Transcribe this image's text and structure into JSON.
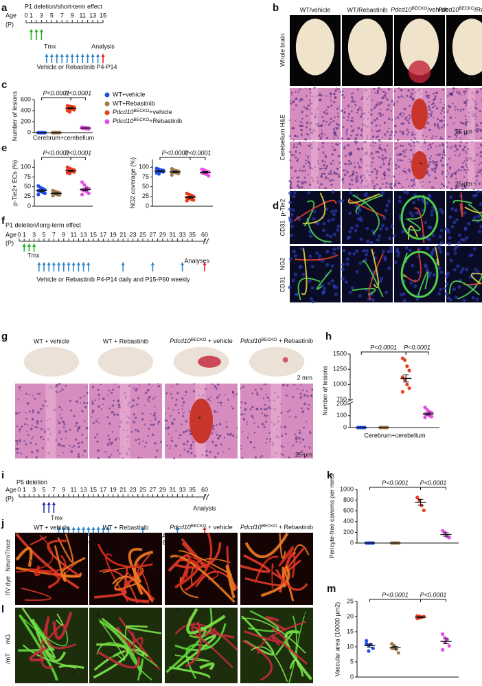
{
  "panel_labels": [
    "a",
    "b",
    "c",
    "d",
    "e",
    "f",
    "g",
    "h",
    "i",
    "j",
    "k",
    "l",
    "m"
  ],
  "timelines": [
    {
      "title": "P1 deletion/short-term effect",
      "age": "Age",
      "unit": "(P)",
      "ticks": [
        "0 1",
        "3",
        "5",
        "7",
        "9",
        "11",
        "13",
        "15"
      ],
      "tmx": "Tmx",
      "end": "Analysis",
      "treatment": "Vehicle or Rebastinib P4-P14"
    },
    {
      "title": "P1 deletion/long-term effect",
      "age": "Age",
      "unit": "(P)",
      "ticks": [
        "0 1",
        "3",
        "5",
        "7",
        "9",
        "11",
        "13",
        "15",
        "17",
        "19",
        "21",
        "23",
        "25",
        "27",
        "29",
        "31",
        "33",
        "35",
        "60"
      ],
      "tmx": "Tmx",
      "end": "Analyses",
      "treatment": "Vehicle or Rebastinib P4-P14 daily and P15-P60 weekly"
    },
    {
      "title": "P5 deletion",
      "age": "Age",
      "unit": "(P)",
      "ticks": [
        "0 1",
        "3",
        "5",
        "7",
        "9",
        "11",
        "13",
        "15",
        "17",
        "19",
        "21",
        "23",
        "25",
        "27",
        "29",
        "31",
        "33",
        "35",
        "60"
      ],
      "tmx": "Tmx",
      "end": "Analysis",
      "treatment": "Vehicle or Rebastinib P8-P18 daily and P19-P60 weekly"
    }
  ],
  "images": {
    "b": {
      "columns": [
        "WT/vehicle",
        "WT/Rebastinib",
        "Pdcd10BECKO/vehicle",
        "Pdcd10BECKO/Rebastinib"
      ],
      "rows": [
        "Whole brain",
        "Cerebellum H&E"
      ],
      "scale_bars": [
        "2 mm",
        "25 μm",
        "25 μm"
      ],
      "markers": [
        "*",
        "*"
      ]
    },
    "d": {
      "rows": [
        [
          "p-Tie2",
          "CD31"
        ],
        [
          "NG2",
          "CD31"
        ]
      ],
      "markers": [
        "*",
        "*"
      ]
    },
    "g": {
      "columns": [
        "WT + vehicle",
        "WT + Rebastinib",
        "Pdcd10BECKO + vehicle",
        "Pdcd10BECKO + Rebastinib"
      ],
      "scale_bars": [
        "2 mm",
        "25 μm"
      ],
      "markers": [
        "*",
        "*"
      ]
    },
    "j": {
      "columns": [
        "WT + vehicle",
        "WT + Rebastinib",
        "Pdcd10BECKO + vehicle",
        "Pdcd10BECKO + Rebastinib"
      ],
      "rows": [
        [
          "NeuroTrace",
          "/IV dye"
        ]
      ],
      "markers": [
        "A",
        "V",
        "A",
        "V",
        "V",
        "V",
        "A",
        "V"
      ]
    },
    "l": {
      "rows": [
        [
          "mG",
          "/mT"
        ]
      ],
      "markers": [
        "A",
        "V",
        "A",
        "V",
        "A",
        "A",
        "A"
      ]
    }
  },
  "chart_data": [
    {
      "type": "strip",
      "y_label": "Number of lesions",
      "x_label": "Cerebrum+cerebellum",
      "ylim": [
        0,
        600
      ],
      "yticks": [
        0,
        200,
        400,
        600
      ],
      "annotations": [
        "P<0.0001",
        "P<0.0001"
      ],
      "series": [
        {
          "name": "WT+vehicle",
          "color": "#1f4fe6",
          "values": [
            0,
            0,
            0,
            0,
            0,
            0,
            0,
            0,
            0,
            0
          ],
          "mean": 0,
          "sem": 0
        },
        {
          "name": "WT+Rebastinib",
          "color": "#a27a4e",
          "values": [
            0,
            0,
            0,
            0,
            0,
            0,
            0,
            0,
            0,
            0
          ],
          "mean": 0,
          "sem": 0
        },
        {
          "name": "Pdcd10BECKO+vehicle",
          "color": "#e83c1c",
          "values": [
            490,
            480,
            470,
            465,
            455,
            440,
            430,
            415,
            400,
            380
          ],
          "mean": 443,
          "sem": 11
        },
        {
          "name": "Pdcd10BECKO+Rebastinib",
          "color": "#e04ee4",
          "values": [
            100,
            95,
            90,
            85,
            82,
            78,
            72,
            68
          ],
          "mean": 84,
          "sem": 4
        }
      ]
    },
    {
      "type": "strip",
      "y_label": "p-Tie2+ ECs (%)",
      "ylim": [
        0,
        120
      ],
      "yticks": [
        0,
        25,
        50,
        75,
        100
      ],
      "annotations": [
        "P<0.0001",
        "P<0.0001"
      ],
      "series": [
        {
          "color": "#1f4fe6",
          "values": [
            52,
            48,
            45,
            42,
            40,
            38,
            36,
            33,
            30
          ],
          "mean": 40,
          "sem": 2.5
        },
        {
          "color": "#a27a4e",
          "values": [
            40,
            38,
            36,
            34,
            33,
            32,
            30,
            29,
            27
          ],
          "mean": 33,
          "sem": 1.5
        },
        {
          "color": "#e83c1c",
          "values": [
            100,
            97,
            95,
            93,
            92,
            90,
            89,
            88,
            86,
            84
          ],
          "mean": 91,
          "sem": 1.5
        },
        {
          "color": "#e04ee4",
          "values": [
            62,
            55,
            48,
            45,
            42,
            40,
            38,
            33,
            30
          ],
          "mean": 43,
          "sem": 3.5
        }
      ]
    },
    {
      "type": "strip",
      "y_label": "NG2 coverage (%)",
      "ylim": [
        0,
        120
      ],
      "yticks": [
        0,
        25,
        50,
        75,
        100
      ],
      "annotations": [
        "P<0.0001",
        "P<0.0001"
      ],
      "series": [
        {
          "color": "#1f4fe6",
          "values": [
            97,
            95,
            93,
            92,
            91,
            90,
            89,
            88,
            85,
            83
          ],
          "mean": 90,
          "sem": 1.4
        },
        {
          "color": "#a27a4e",
          "values": [
            96,
            93,
            91,
            90,
            88,
            87,
            86,
            84,
            80
          ],
          "mean": 88,
          "sem": 1.7
        },
        {
          "color": "#e83c1c",
          "values": [
            33,
            30,
            28,
            25,
            22,
            20,
            18,
            16,
            14
          ],
          "mean": 23,
          "sem": 2.2
        },
        {
          "color": "#e04ee4",
          "values": [
            95,
            93,
            90,
            88,
            86,
            84,
            82,
            78
          ],
          "mean": 87,
          "sem": 2
        }
      ]
    },
    {
      "type": "strip",
      "y_label": "Number of lesions",
      "x_label": "Cerebrum+cerebellum",
      "ylim": [
        0,
        1500
      ],
      "axis_break": [
        200,
        750
      ],
      "yticks": [
        0,
        100,
        200,
        750,
        1000,
        1250,
        1500
      ],
      "annotations": [
        "P<0.0001",
        "P<0.0001"
      ],
      "series": [
        {
          "color": "#1f4fe6",
          "values": [
            0,
            0,
            0,
            0,
            0,
            0,
            0,
            0,
            0
          ],
          "mean": 0,
          "sem": 0
        },
        {
          "color": "#a27a4e",
          "values": [
            0,
            0,
            0,
            0,
            0,
            0,
            0,
            0,
            0
          ],
          "mean": 0,
          "sem": 0
        },
        {
          "color": "#e83c1c",
          "values": [
            1430,
            1400,
            1300,
            1230,
            1120,
            1080,
            1000,
            940,
            880
          ],
          "mean": 1100,
          "sem": 60
        },
        {
          "color": "#e04ee4",
          "values": [
            170,
            150,
            135,
            125,
            115,
            110,
            100,
            92,
            85
          ],
          "mean": 115,
          "sem": 9
        }
      ]
    },
    {
      "type": "strip",
      "y_label": "Pericyte-free caverns per mm3",
      "ylim": [
        0,
        1000
      ],
      "yticks": [
        0,
        200,
        400,
        600,
        800,
        1000
      ],
      "annotations": [
        "P<0.0001",
        "P<0.0001"
      ],
      "series": [
        {
          "color": "#1f4fe6",
          "values": [
            0,
            0,
            0,
            0
          ],
          "mean": 0,
          "sem": 0
        },
        {
          "color": "#a27a4e",
          "values": [
            0,
            0,
            0,
            0
          ],
          "mean": 0,
          "sem": 0
        },
        {
          "color": "#e83c1c",
          "values": [
            850,
            800,
            700,
            610
          ],
          "mean": 760,
          "sem": 55
        },
        {
          "color": "#e04ee4",
          "values": [
            230,
            200,
            120,
            100
          ],
          "mean": 160,
          "sem": 32
        }
      ]
    },
    {
      "type": "strip",
      "y_label": "Vascular area (10000 µm2)",
      "ylim": [
        0,
        25
      ],
      "yticks": [
        0,
        5,
        10,
        15,
        20,
        25
      ],
      "annotations": [
        "P<0.0001",
        "P<0.0001"
      ],
      "series": [
        {
          "color": "#1f4fe6",
          "values": [
            11,
            10.5,
            10.8,
            9.5,
            12,
            8.6
          ],
          "mean": 10.4,
          "sem": 0.5
        },
        {
          "color": "#a27a4e",
          "values": [
            11,
            10,
            9.2,
            8,
            9.6,
            10.4
          ],
          "mean": 9.7,
          "sem": 0.45
        },
        {
          "color": "#e83c1c",
          "values": [
            20.2,
            19.6,
            19.8,
            20,
            19.4,
            20.1
          ],
          "mean": 19.8,
          "sem": 0.2
        },
        {
          "color": "#e04ee4",
          "values": [
            14.2,
            13,
            12.5,
            10.3,
            9,
            11.5
          ],
          "mean": 11.8,
          "sem": 0.8
        }
      ]
    }
  ]
}
